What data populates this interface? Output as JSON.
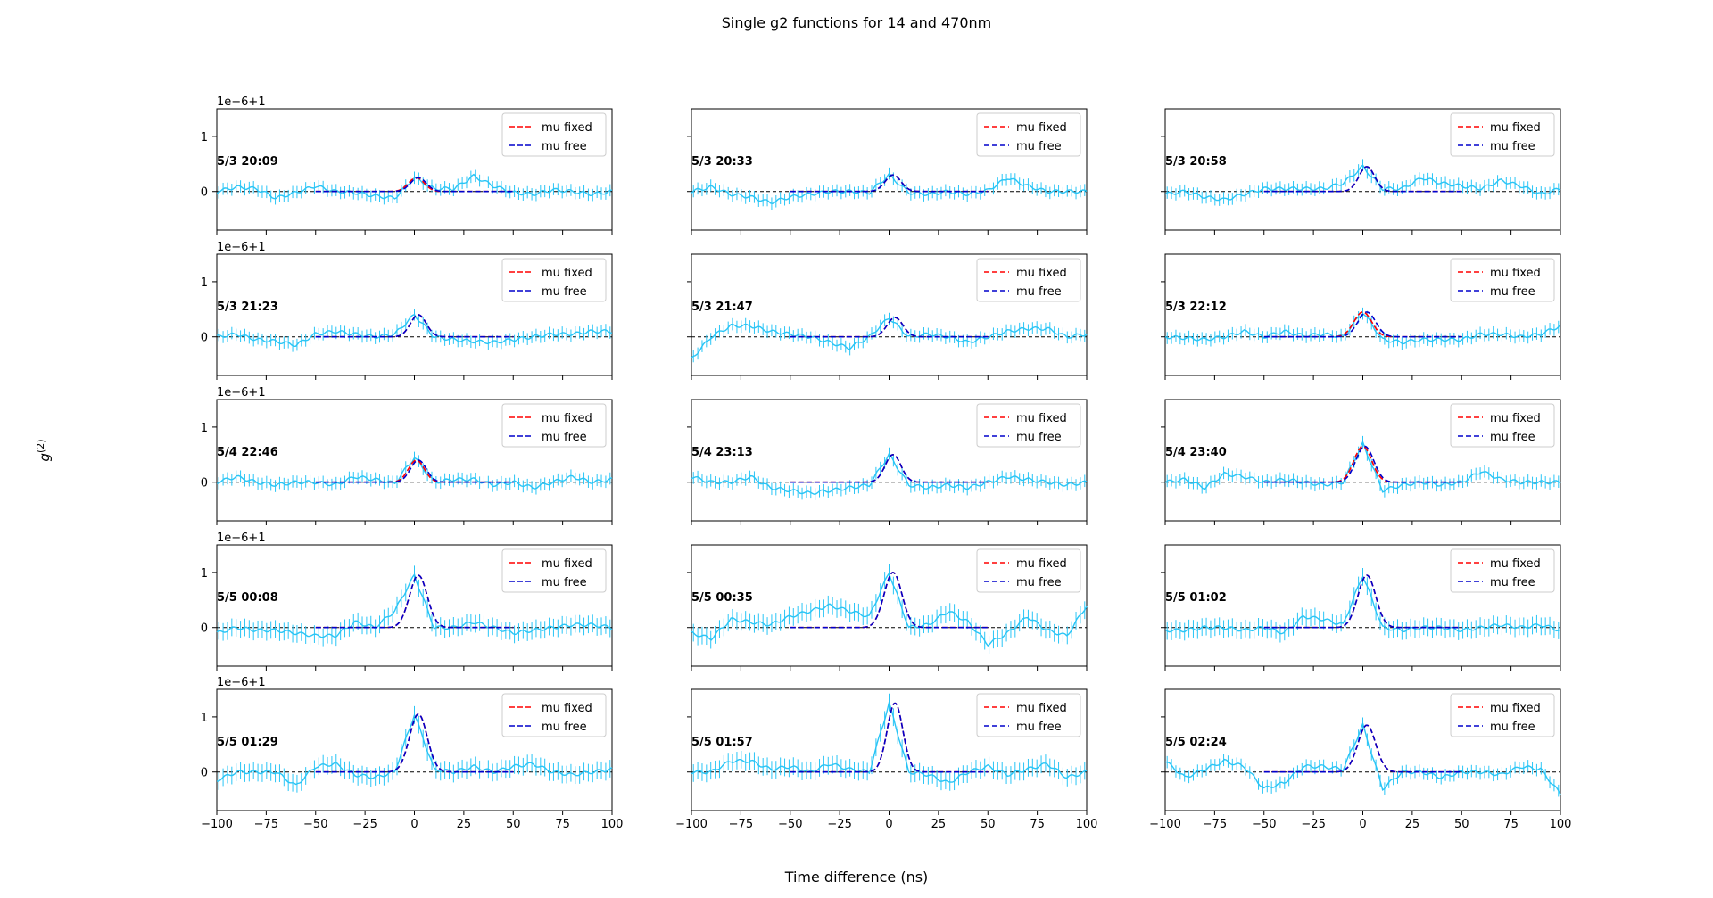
{
  "figure": {
    "title": "Single g2 functions for 14 and 470nm",
    "xlabel": "Time difference (ns)",
    "ylabel": "g(2)",
    "ylabel_main": "g",
    "ylabel_sup": "(2)"
  },
  "legend": {
    "fixed": "mu fixed",
    "free": "mu free"
  },
  "colors": {
    "data": "#29c5f6",
    "fixed": "#ff0000",
    "free": "#0000cc",
    "baseline": "#000000"
  },
  "chart_data": {
    "type": "line",
    "xlim": [
      -100,
      100
    ],
    "ylim": [
      -0.7,
      1.5
    ],
    "y_offset_label": "1e−6+1",
    "xticks": [
      -100,
      -75,
      -50,
      -25,
      0,
      25,
      50,
      75,
      100
    ],
    "xtick_labels": [
      "−100",
      "−75",
      "−50",
      "−25",
      "0",
      "25",
      "50",
      "75",
      "100"
    ],
    "yticks": [
      0,
      1
    ],
    "ytick_labels": [
      "0",
      "1"
    ],
    "series_names": [
      "mu fixed",
      "mu free"
    ],
    "panels": [
      {
        "label": "5/3 20:09",
        "amp": 0.25,
        "mu_fixed": 1,
        "mu_free": 2,
        "sigma": 4,
        "x": [
          -100,
          -90,
          -80,
          -70,
          -60,
          -50,
          -40,
          -30,
          -20,
          -10,
          0,
          10,
          20,
          30,
          40,
          50,
          60,
          70,
          80,
          90,
          100
        ],
        "y": [
          0.0,
          0.08,
          0.05,
          -0.12,
          -0.02,
          0.1,
          0.0,
          -0.02,
          -0.08,
          -0.12,
          0.25,
          0.05,
          0.05,
          0.28,
          0.1,
          -0.02,
          -0.05,
          0.03,
          0.0,
          -0.05,
          0.0
        ]
      },
      {
        "label": "5/3 20:33",
        "amp": 0.3,
        "mu_fixed": 2,
        "mu_free": 2,
        "sigma": 4,
        "x": [
          -100,
          -90,
          -80,
          -70,
          -60,
          -50,
          -40,
          -30,
          -20,
          -10,
          0,
          10,
          20,
          30,
          40,
          50,
          60,
          70,
          80,
          90,
          100
        ],
        "y": [
          0.0,
          0.08,
          -0.05,
          -0.1,
          -0.2,
          -0.1,
          -0.05,
          0.0,
          0.0,
          -0.02,
          0.3,
          -0.02,
          -0.05,
          0.0,
          -0.05,
          0.02,
          0.25,
          0.1,
          0.0,
          0.0,
          0.0
        ]
      },
      {
        "label": "5/3 20:58",
        "amp": 0.45,
        "mu_fixed": 2,
        "mu_free": 2,
        "sigma": 4,
        "x": [
          -100,
          -90,
          -80,
          -70,
          -60,
          -50,
          -40,
          -30,
          -20,
          -10,
          0,
          10,
          20,
          30,
          40,
          50,
          60,
          70,
          80,
          90,
          100
        ],
        "y": [
          -0.05,
          0.0,
          -0.1,
          -0.15,
          -0.05,
          0.05,
          0.05,
          0.05,
          0.05,
          0.15,
          0.45,
          0.05,
          0.05,
          0.25,
          0.15,
          0.1,
          0.05,
          0.2,
          0.1,
          -0.05,
          0.05
        ]
      },
      {
        "label": "5/3 21:23",
        "amp": 0.4,
        "mu_fixed": 2,
        "mu_free": 2,
        "sigma": 4,
        "x": [
          -100,
          -90,
          -80,
          -70,
          -60,
          -50,
          -40,
          -30,
          -20,
          -10,
          0,
          10,
          20,
          30,
          40,
          50,
          60,
          70,
          80,
          90,
          100
        ],
        "y": [
          0.0,
          0.05,
          -0.05,
          -0.08,
          -0.15,
          0.05,
          0.1,
          0.05,
          0.0,
          0.05,
          0.4,
          0.0,
          -0.05,
          -0.08,
          -0.1,
          -0.05,
          0.0,
          0.05,
          0.05,
          0.1,
          0.1
        ]
      },
      {
        "label": "5/3 21:47",
        "amp": 0.35,
        "mu_fixed": 3,
        "mu_free": 3,
        "sigma": 4,
        "x": [
          -100,
          -90,
          -80,
          -70,
          -60,
          -50,
          -40,
          -30,
          -20,
          -10,
          0,
          10,
          20,
          30,
          40,
          50,
          60,
          70,
          80,
          90,
          100
        ],
        "y": [
          -0.4,
          0.0,
          0.2,
          0.2,
          0.1,
          0.05,
          0.0,
          -0.1,
          -0.2,
          0.0,
          0.35,
          0.0,
          0.05,
          0.0,
          -0.1,
          0.0,
          0.1,
          0.15,
          0.15,
          0.0,
          0.05
        ]
      },
      {
        "label": "5/3 22:12",
        "amp": 0.45,
        "mu_fixed": 0,
        "mu_free": 2,
        "sigma": 4.5,
        "x": [
          -100,
          -90,
          -80,
          -70,
          -60,
          -50,
          -40,
          -30,
          -20,
          -10,
          0,
          10,
          20,
          30,
          40,
          50,
          60,
          70,
          80,
          90,
          100
        ],
        "y": [
          0.0,
          -0.02,
          -0.05,
          0.0,
          0.1,
          0.0,
          0.1,
          0.02,
          0.05,
          0.0,
          0.45,
          -0.05,
          -0.1,
          -0.05,
          -0.05,
          -0.05,
          0.05,
          0.05,
          0.0,
          0.05,
          0.2
        ]
      },
      {
        "label": "5/4 22:46",
        "amp": 0.4,
        "mu_fixed": 1,
        "mu_free": 2,
        "sigma": 4,
        "x": [
          -100,
          -90,
          -80,
          -70,
          -60,
          -50,
          -40,
          -30,
          -20,
          -10,
          0,
          10,
          20,
          30,
          40,
          50,
          60,
          70,
          80,
          90,
          100
        ],
        "y": [
          0.0,
          0.1,
          0.0,
          -0.05,
          0.0,
          0.0,
          -0.05,
          0.1,
          0.05,
          -0.02,
          0.45,
          0.0,
          0.05,
          0.05,
          -0.05,
          0.0,
          -0.1,
          0.0,
          0.1,
          0.0,
          0.05
        ]
      },
      {
        "label": "5/4 23:13",
        "amp": 0.5,
        "mu_fixed": 2,
        "mu_free": 2,
        "sigma": 4,
        "x": [
          -100,
          -90,
          -80,
          -70,
          -60,
          -50,
          -40,
          -30,
          -20,
          -10,
          0,
          10,
          20,
          30,
          40,
          50,
          60,
          70,
          80,
          90,
          100
        ],
        "y": [
          0.1,
          0.0,
          0.0,
          0.1,
          -0.1,
          -0.15,
          -0.2,
          -0.15,
          -0.1,
          -0.05,
          0.5,
          -0.05,
          -0.1,
          -0.05,
          -0.1,
          0.0,
          0.1,
          0.05,
          0.0,
          -0.05,
          0.0
        ]
      },
      {
        "label": "5/4 23:40",
        "amp": 0.65,
        "mu_fixed": 0,
        "mu_free": 1,
        "sigma": 4.5,
        "x": [
          -100,
          -90,
          -80,
          -70,
          -60,
          -50,
          -40,
          -30,
          -20,
          -10,
          0,
          10,
          20,
          30,
          40,
          50,
          60,
          70,
          80,
          90,
          100
        ],
        "y": [
          0.0,
          0.05,
          -0.1,
          0.15,
          0.1,
          0.0,
          0.05,
          0.0,
          -0.05,
          0.0,
          0.7,
          -0.15,
          -0.05,
          0.0,
          -0.05,
          0.0,
          0.2,
          0.05,
          0.0,
          0.0,
          0.0
        ]
      },
      {
        "label": "5/5 00:08",
        "amp": 0.95,
        "mu_fixed": 2,
        "mu_free": 2,
        "sigma": 4.5,
        "x": [
          -100,
          -90,
          -80,
          -70,
          -60,
          -50,
          -40,
          -30,
          -20,
          -10,
          0,
          10,
          20,
          30,
          40,
          50,
          60,
          70,
          80,
          90,
          100
        ],
        "y": [
          -0.1,
          0.0,
          -0.05,
          -0.05,
          -0.1,
          -0.15,
          -0.15,
          0.1,
          0.0,
          0.3,
          0.95,
          0.0,
          0.0,
          0.1,
          0.0,
          -0.1,
          -0.05,
          0.0,
          0.05,
          0.05,
          0.0
        ]
      },
      {
        "label": "5/5 00:35",
        "amp": 1.0,
        "mu_fixed": 2,
        "mu_free": 2,
        "sigma": 4.5,
        "x": [
          -100,
          -90,
          -80,
          -70,
          -60,
          -50,
          -40,
          -30,
          -20,
          -10,
          0,
          10,
          20,
          30,
          40,
          50,
          60,
          70,
          80,
          90,
          100
        ],
        "y": [
          -0.1,
          -0.2,
          0.15,
          0.1,
          0.05,
          0.2,
          0.3,
          0.4,
          0.3,
          0.2,
          1.0,
          0.0,
          0.05,
          0.3,
          0.1,
          -0.3,
          -0.1,
          0.2,
          -0.05,
          -0.15,
          0.4
        ]
      },
      {
        "label": "5/5 01:02",
        "amp": 0.95,
        "mu_fixed": 2,
        "mu_free": 2,
        "sigma": 4.5,
        "x": [
          -100,
          -90,
          -80,
          -70,
          -60,
          -50,
          -40,
          -30,
          -20,
          -10,
          0,
          10,
          20,
          30,
          40,
          50,
          60,
          70,
          80,
          90,
          100
        ],
        "y": [
          -0.05,
          -0.05,
          0.0,
          0.0,
          -0.05,
          0.0,
          -0.1,
          0.2,
          0.15,
          0.05,
          0.95,
          0.0,
          -0.05,
          0.0,
          0.0,
          -0.05,
          0.0,
          0.05,
          0.0,
          0.05,
          -0.05
        ]
      },
      {
        "label": "5/5 01:29",
        "amp": 1.05,
        "mu_fixed": 2,
        "mu_free": 2,
        "sigma": 4.5,
        "x": [
          -100,
          -90,
          -80,
          -70,
          -60,
          -50,
          -40,
          -30,
          -20,
          -10,
          0,
          10,
          20,
          30,
          40,
          50,
          60,
          70,
          80,
          90,
          100
        ],
        "y": [
          -0.15,
          0.0,
          0.0,
          0.0,
          -0.25,
          0.1,
          0.15,
          -0.05,
          -0.1,
          0.0,
          1.05,
          0.05,
          0.0,
          0.1,
          0.0,
          0.1,
          0.15,
          0.0,
          -0.05,
          0.0,
          0.05
        ]
      },
      {
        "label": "5/5 01:57",
        "amp": 1.25,
        "mu_fixed": 3,
        "mu_free": 3,
        "sigma": 4,
        "x": [
          -100,
          -90,
          -80,
          -70,
          -60,
          -50,
          -40,
          -30,
          -20,
          -10,
          0,
          10,
          20,
          30,
          40,
          50,
          60,
          70,
          80,
          90,
          100
        ],
        "y": [
          0.0,
          0.0,
          0.2,
          0.2,
          0.05,
          0.1,
          0.0,
          0.15,
          0.05,
          0.0,
          1.25,
          0.0,
          -0.05,
          -0.2,
          0.0,
          0.1,
          -0.05,
          0.05,
          0.15,
          -0.1,
          0.0
        ]
      },
      {
        "label": "5/5 02:24",
        "amp": 0.85,
        "mu_fixed": 2,
        "mu_free": 2,
        "sigma": 4.5,
        "x": [
          -100,
          -90,
          -80,
          -70,
          -60,
          -50,
          -40,
          -30,
          -20,
          -10,
          0,
          10,
          20,
          30,
          40,
          50,
          60,
          70,
          80,
          90,
          100
        ],
        "y": [
          0.2,
          -0.1,
          0.05,
          0.2,
          0.1,
          -0.3,
          -0.2,
          0.1,
          0.1,
          0.05,
          0.85,
          -0.3,
          0.0,
          0.0,
          -0.1,
          0.0,
          0.0,
          -0.05,
          0.1,
          0.05,
          -0.4
        ]
      }
    ]
  }
}
